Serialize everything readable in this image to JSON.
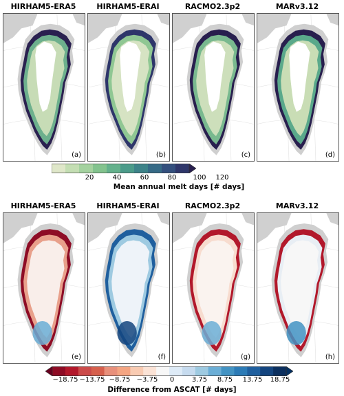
{
  "row1": {
    "titles": [
      "HIRHAM5-ERA5",
      "HIRHAM5-ERAI",
      "RACMO2.3p2",
      "MARv3.12"
    ],
    "labels": [
      "(a)",
      "(b)",
      "(c)",
      "(d)"
    ],
    "colorbar": {
      "ticks": [
        "20",
        "40",
        "60",
        "80",
        "100",
        "120"
      ],
      "title": "Mean annual melt days [# days]",
      "colors": [
        "#dfe7c9",
        "#c4deb3",
        "#a4d29f",
        "#83c38e",
        "#64b18c",
        "#4b9b8a",
        "#3d8389",
        "#366a86",
        "#334f7d",
        "#2e366a",
        "#281f4e"
      ]
    }
  },
  "row2": {
    "titles": [
      "HIRHAM5-ERA5",
      "HIRHAM5-ERAI",
      "RACMO2.3p2",
      "MARv3.12"
    ],
    "labels": [
      "(e)",
      "(f)",
      "(g)",
      "(h)"
    ],
    "colorbar": {
      "ticks": [
        "−18.75",
        "−13.75",
        "−8.75",
        "−3.75",
        "0",
        "3.75",
        "8.75",
        "13.75",
        "18.75"
      ],
      "title": "Difference from ASCAT [# days]",
      "colors": [
        "#67001f",
        "#8e0c25",
        "#b2182b",
        "#cb4b4a",
        "#d6604d",
        "#e8907b",
        "#f4a582",
        "#f9cbb2",
        "#fbe3d6",
        "#f7f7f7",
        "#deebf7",
        "#c6dbef",
        "#9ecae1",
        "#6baed6",
        "#4393c3",
        "#2c7bb6",
        "#1f5f9e",
        "#14457f",
        "#0b2f5e",
        "#053061"
      ]
    }
  }
}
